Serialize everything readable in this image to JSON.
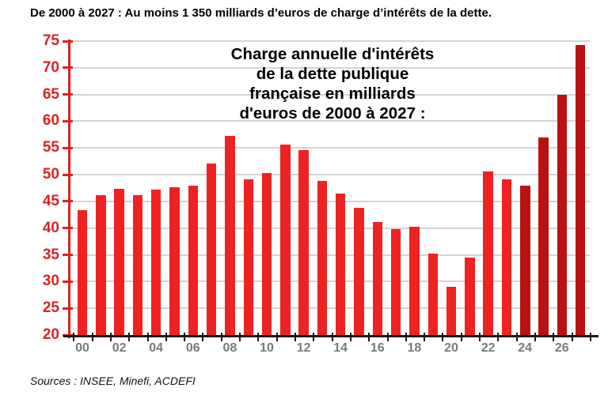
{
  "page": {
    "header_title": "De 2000 à 2027 : Au moins 1 350 milliards d’euros de charge d’intérêts de la dette.",
    "footer_source": "Sources : INSEE, Minefi, ACDEFI"
  },
  "colors": {
    "bar_actual": "#EE2222",
    "bar_projection": "#BB1111",
    "axis_red": "#DD2222",
    "y_label_red": "#DD2222",
    "x_label_gray": "#7A7A7A",
    "gridline_gray": "#D4D4D4",
    "x_axis_black": "#1A1A1A",
    "title_black": "#000000"
  },
  "chart_data": {
    "type": "bar",
    "title_lines": [
      "Charge annuelle d'intérêts",
      "de la dette publique",
      "française en milliards",
      "d'euros de 2000 à 2027 :"
    ],
    "years": [
      "2000",
      "2001",
      "2002",
      "2003",
      "2004",
      "2005",
      "2006",
      "2007",
      "2008",
      "2009",
      "2010",
      "2011",
      "2012",
      "2013",
      "2014",
      "2015",
      "2016",
      "2017",
      "2018",
      "2019",
      "2020",
      "2021",
      "2022",
      "2023",
      "2024",
      "2025",
      "2026",
      "2027"
    ],
    "values": [
      43.3,
      46.2,
      47.3,
      46.2,
      47.2,
      47.6,
      48.0,
      52.1,
      57.2,
      49.1,
      50.3,
      55.6,
      54.6,
      48.9,
      46.4,
      43.8,
      41.1,
      39.8,
      40.2,
      35.2,
      29.0,
      34.5,
      50.6,
      49.1,
      48.0,
      57.0,
      65.0,
      74.3
    ],
    "projection_from_year": "2024",
    "x_tick_labels": [
      "00",
      "02",
      "04",
      "06",
      "08",
      "10",
      "12",
      "14",
      "16",
      "18",
      "20",
      "22",
      "24",
      "26"
    ],
    "y_ticks": [
      20,
      25,
      30,
      35,
      40,
      45,
      50,
      55,
      60,
      65,
      70,
      75
    ],
    "ylim": [
      20,
      75
    ],
    "ylabel": "",
    "xlabel": "",
    "grid": "horizontal-light-gray",
    "legend": "none"
  }
}
